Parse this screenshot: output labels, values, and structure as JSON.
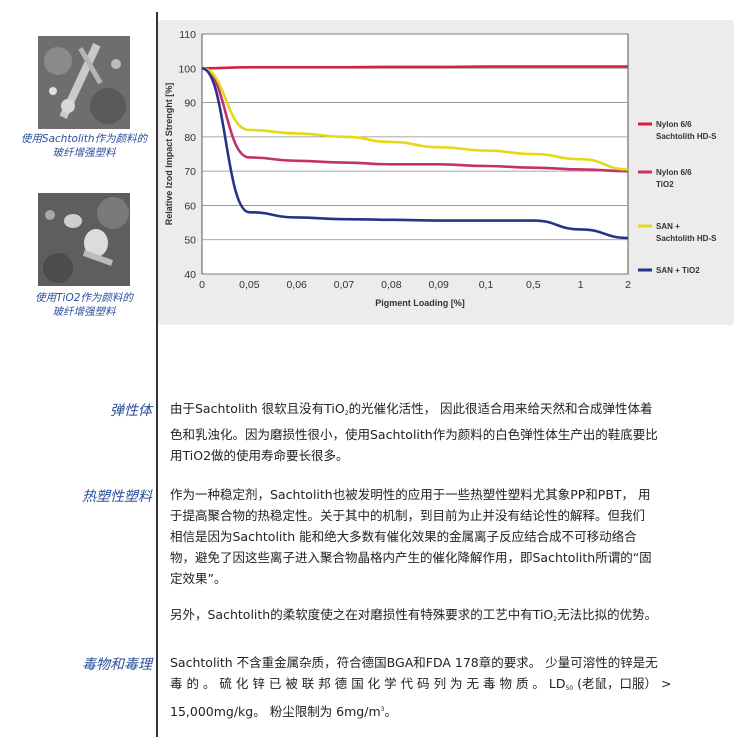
{
  "sidebar": {
    "caption1_line1": "使用Sachtolith作为颜料的",
    "caption1_line2": "玻纤增强塑料",
    "caption2_line1": "使用TiO2作为颜料的",
    "caption2_line2": "玻纤增强塑料"
  },
  "colors": {
    "nylon_sachtolith": "#d4223a",
    "nylon_tio2": "#c2316c",
    "san_sachtolith": "#e6d817",
    "san_tio2": "#25348a",
    "heading": "#2a4f9c"
  },
  "chart_data": {
    "type": "line",
    "xlabel": "Pigment Loading [%]",
    "ylabel": "Relative Izod Impact Strenght [%]",
    "categories": [
      "0",
      "0,05",
      "0,06",
      "0,07",
      "0,08",
      "0,09",
      "0,1",
      "0,5",
      "1",
      "2"
    ],
    "ylim": [
      40,
      110
    ],
    "yticks": [
      "40",
      "50",
      "60",
      "70",
      "80",
      "90",
      "100",
      "110"
    ],
    "grid": true,
    "legend_position": "right",
    "series": [
      {
        "name_line1": "Nylon 6/6",
        "name_line2": "Sachtolith HD-S",
        "values": [
          100,
          100.3,
          100.3,
          100.3,
          100.4,
          100.4,
          100.5,
          100.5,
          100.5,
          100.5
        ]
      },
      {
        "name_line1": "Nylon 6/6",
        "name_line2": "TiO2",
        "values": [
          100,
          74,
          73,
          72.5,
          72,
          72,
          71.5,
          71,
          70.5,
          70
        ]
      },
      {
        "name_line1": "SAN +",
        "name_line2": "Sachtolith HD-S",
        "values": [
          100,
          82,
          81,
          80,
          78.5,
          77,
          76,
          75,
          73.5,
          70.5
        ]
      },
      {
        "name_line1": "SAN + TiO2",
        "name_line2": "",
        "values": [
          100,
          58,
          56.5,
          56,
          55.8,
          55.6,
          55.6,
          55.6,
          53,
          50.5
        ]
      }
    ]
  },
  "sections": [
    {
      "heading": "弹性体",
      "lines": [
        [
          "由于Sachtolith 很软且没有TiO",
          "2",
          "的光催化活性，  因此很适合用来给天然和合成弹性体着"
        ],
        [
          "色和乳浊化。因为磨损性很小，使用Sachtolith作为颜料的白色弹性体生产出的鞋底要比"
        ],
        [
          "用TiO2做的使用寿命要长很多。"
        ]
      ]
    },
    {
      "heading": "热塑性塑料",
      "lines": [
        [
          "作为一种稳定剂，Sachtolith也被发明性的应用于一些热塑性塑料尤其象PP和PBT，  用"
        ],
        [
          "于提高聚合物的热稳定性。关于其中的机制，到目前为止并没有结论性的解释。但我们"
        ],
        [
          "相信是因为Sachtolith 能和绝大多数有催化效果的金属离子反应结合成不可移动络合"
        ],
        [
          "物，避免了因这些离子进入聚合物晶格内产生的催化降解作用，即Sachtolith所谓的“固"
        ],
        [
          "定效果”。"
        ]
      ],
      "extra": [
        "另外，Sachtolith的柔软度使之在对磨损性有特殊要求的工艺中有TiO",
        "2",
        "无法比拟的优势。"
      ]
    },
    {
      "heading": "毒物和毒理",
      "line1": "Sachtolith 不含重金属杂质，符合德国BGA和FDA 178章的要求。 少量可溶性的锌是无",
      "line2a": "毒 的 。  硫 化 锌 已 被 联 邦 德 国 化 学 代 码 列 为 无 毒 物 质 。  LD",
      "line2sub": "50",
      "line2b": " (老鼠，口服） >",
      "line3a": "15,000mg/kg。 粉尘限制为 6mg/m",
      "line3sup": "3",
      "line3b": "。"
    }
  ]
}
